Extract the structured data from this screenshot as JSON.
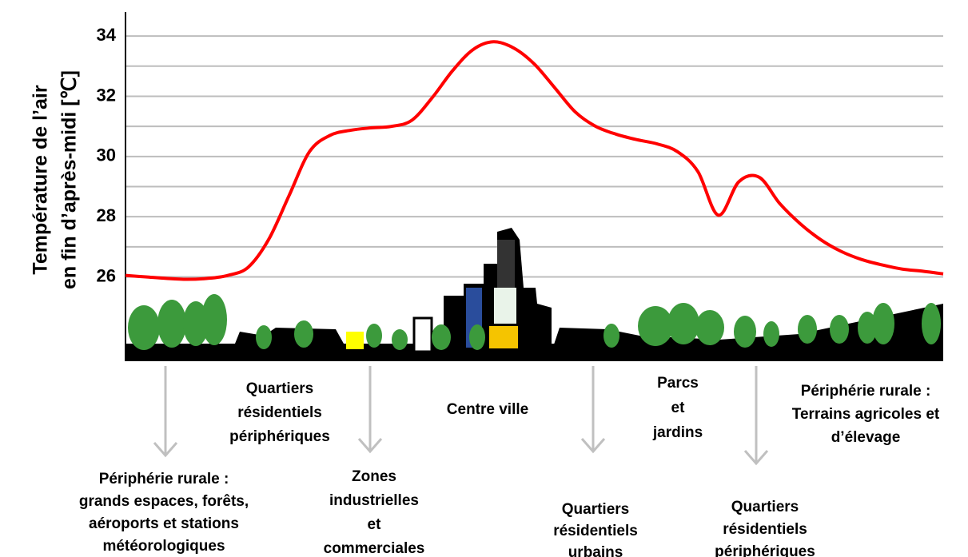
{
  "chart_data": {
    "type": "line",
    "y_label": [
      "Température de l’air",
      "en fin d’après-midi [℃]"
    ],
    "categories": [
      null,
      null,
      null,
      null,
      null,
      null,
      null,
      null,
      null,
      null,
      null,
      null,
      null,
      null,
      null,
      null,
      null,
      null,
      null,
      null,
      null,
      null,
      null,
      null,
      null,
      null,
      null,
      null,
      null,
      null,
      null,
      null,
      null,
      null,
      null,
      null,
      null,
      null,
      null,
      null,
      null
    ],
    "series": [
      {
        "color": "#ff0000",
        "values": [
          26.05,
          26.0,
          25.95,
          25.92,
          25.95,
          26.05,
          26.32,
          27.24,
          28.7,
          30.16,
          30.7,
          30.87,
          30.95,
          31.0,
          31.2,
          31.95,
          32.85,
          33.55,
          33.81,
          33.6,
          33.07,
          32.28,
          31.48,
          31.0,
          30.74,
          30.56,
          30.42,
          30.16,
          29.5,
          28.05,
          29.16,
          29.31,
          28.44,
          27.77,
          27.24,
          26.85,
          26.58,
          26.4,
          26.26,
          26.19,
          26.1
        ]
      }
    ],
    "ylim": [
      23.2,
      34.8
    ],
    "yticks": [
      26,
      28,
      30,
      32,
      34
    ],
    "minor_yticks": [
      27,
      29,
      31,
      33
    ],
    "grid": true,
    "annotations": [
      {
        "lines": [
          "Périphérie rurale :",
          "grands espaces, forêts,",
          "aéroports et stations",
          "météorologiques"
        ]
      },
      {
        "lines": [
          "Quartiers",
          "résidentiels",
          "périphériques"
        ]
      },
      {
        "lines": [
          "Zones",
          "industrielles",
          "et",
          "commerciales"
        ]
      },
      {
        "lines": [
          "Centre ville"
        ]
      },
      {
        "lines": [
          "Quartiers",
          "résidentiels",
          "urbains"
        ]
      },
      {
        "lines": [
          "Parcs",
          "et",
          "jardins"
        ]
      },
      {
        "lines": [
          "Quartiers",
          "résidentiels",
          "périphériques"
        ]
      },
      {
        "lines": [
          "Périphérie rurale :",
          "Terrains agricoles et",
          "d’élevage"
        ]
      }
    ]
  }
}
